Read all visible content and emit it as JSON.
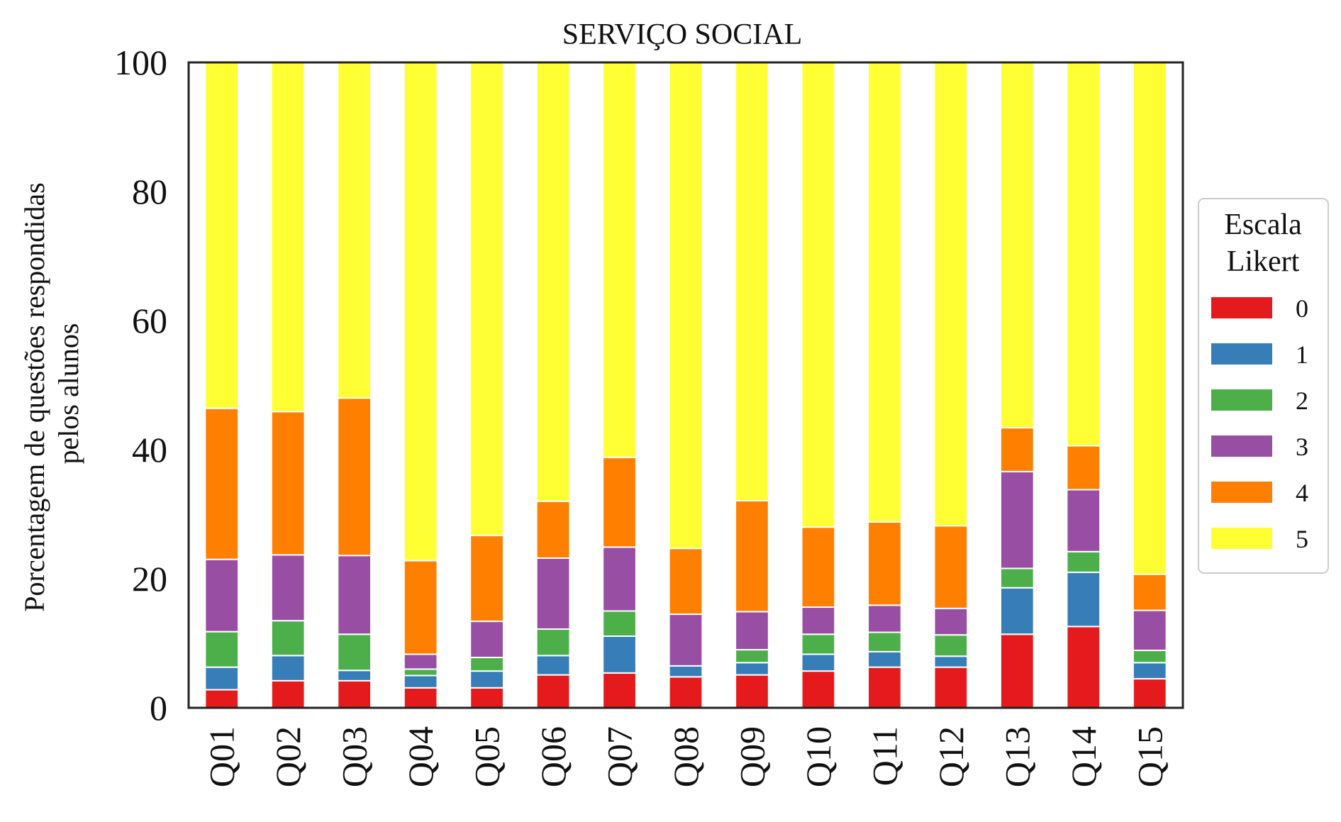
{
  "chart_data": {
    "type": "bar",
    "stacked": true,
    "title": "SERVIÇO SOCIAL",
    "ylabel_lines": [
      "Porcentagem de questões respondidas",
      "pelos alunos"
    ],
    "xlabel": "",
    "ylim": [
      0,
      100
    ],
    "yticks": [
      0,
      20,
      40,
      60,
      80,
      100
    ],
    "grid": false,
    "categories": [
      "Q01",
      "Q02",
      "Q03",
      "Q04",
      "Q05",
      "Q06",
      "Q07",
      "Q08",
      "Q09",
      "Q10",
      "Q11",
      "Q12",
      "Q13",
      "Q14",
      "Q15"
    ],
    "legend": {
      "title_lines": [
        "Escala",
        "Likert"
      ],
      "placement": "right"
    },
    "series": [
      {
        "name": "0",
        "color": "#e41a1c",
        "values": [
          2.8,
          4.2,
          4.2,
          3.1,
          3.1,
          5.1,
          5.4,
          4.8,
          5.1,
          5.7,
          6.3,
          6.3,
          11.4,
          12.6,
          4.5
        ]
      },
      {
        "name": "1",
        "color": "#377eb8",
        "values": [
          3.5,
          3.9,
          1.6,
          1.9,
          2.6,
          3.0,
          5.7,
          1.7,
          1.9,
          2.6,
          2.4,
          1.7,
          7.2,
          8.4,
          2.5
        ]
      },
      {
        "name": "2",
        "color": "#4daf4a",
        "values": [
          5.5,
          5.4,
          5.6,
          1.0,
          2.1,
          4.1,
          3.9,
          0.0,
          2.0,
          3.1,
          3.0,
          3.3,
          3.0,
          3.2,
          1.9
        ]
      },
      {
        "name": "3",
        "color": "#984ea3",
        "values": [
          11.2,
          10.2,
          12.2,
          2.3,
          5.6,
          11.0,
          9.9,
          8.0,
          5.9,
          4.2,
          4.2,
          4.1,
          15.0,
          9.6,
          6.2
        ]
      },
      {
        "name": "4",
        "color": "#ff7f00",
        "values": [
          23.4,
          22.2,
          24.4,
          14.5,
          13.3,
          8.8,
          13.9,
          10.2,
          17.2,
          12.4,
          12.9,
          12.8,
          6.8,
          6.8,
          5.6
        ]
      },
      {
        "name": "5",
        "color": "#ffff33",
        "values": [
          53.6,
          54.1,
          52.0,
          77.2,
          73.3,
          68.0,
          61.2,
          75.3,
          67.9,
          72.0,
          71.2,
          71.8,
          56.6,
          59.4,
          79.3
        ]
      }
    ]
  }
}
